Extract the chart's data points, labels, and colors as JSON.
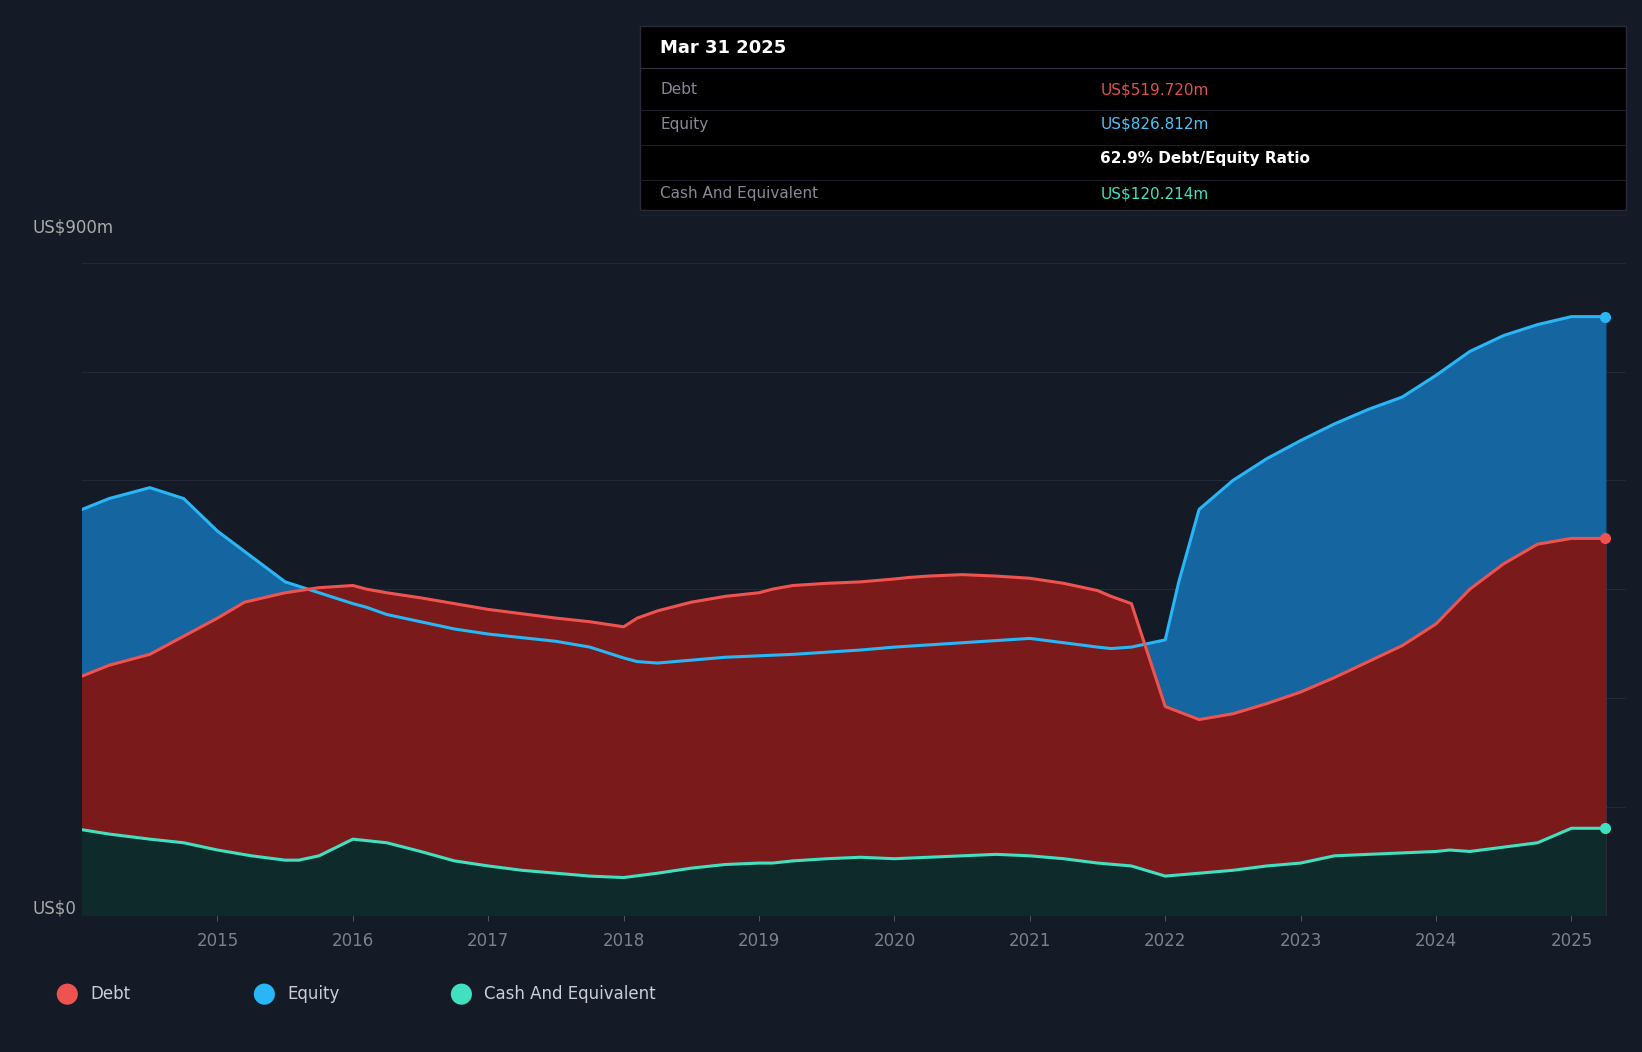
{
  "background_color": "#141b26",
  "plot_bg_color": "#141b26",
  "grid_color": "#2a3040",
  "title_box": {
    "date": "Mar 31 2025",
    "date_color": "#ffffff",
    "rows": [
      {
        "label": "Debt",
        "value": "US$519.720m",
        "value_color": "#e05252"
      },
      {
        "label": "Equity",
        "value": "US$826.812m",
        "value_color": "#4fc3f7"
      },
      {
        "label": "",
        "value": "62.9% Debt/Equity Ratio",
        "value_color": "#ffffff"
      },
      {
        "label": "Cash And Equivalent",
        "value": "US$120.214m",
        "value_color": "#40e0c0"
      }
    ],
    "label_color": "#888899",
    "box_bg": "#000000"
  },
  "ylabel_top": "US$900m",
  "ylabel_bottom": "US$0",
  "x_ticks": [
    2015,
    2016,
    2017,
    2018,
    2019,
    2020,
    2021,
    2022,
    2023,
    2024,
    2025
  ],
  "equity_line_color": "#29b6f6",
  "equity_fill_color": "#1565a0",
  "debt_line_color": "#ef5350",
  "debt_fill_color": "#7b1a1a",
  "cash_line_color": "#40e0c0",
  "cash_fill_color": "#0e2a2a",
  "legend": [
    {
      "label": "Debt",
      "color": "#ef5350"
    },
    {
      "label": "Equity",
      "color": "#29b6f6"
    },
    {
      "label": "Cash And Equivalent",
      "color": "#40e0c0"
    }
  ],
  "equity_data": {
    "x": [
      2014.0,
      2014.2,
      2014.5,
      2014.75,
      2015.0,
      2015.25,
      2015.5,
      2015.75,
      2016.0,
      2016.1,
      2016.25,
      2016.5,
      2016.75,
      2017.0,
      2017.25,
      2017.5,
      2017.75,
      2018.0,
      2018.1,
      2018.25,
      2018.5,
      2018.75,
      2019.0,
      2019.25,
      2019.5,
      2019.75,
      2020.0,
      2020.25,
      2020.5,
      2020.75,
      2021.0,
      2021.25,
      2021.5,
      2021.6,
      2021.75,
      2022.0,
      2022.1,
      2022.25,
      2022.5,
      2022.75,
      2023.0,
      2023.25,
      2023.5,
      2023.75,
      2024.0,
      2024.25,
      2024.5,
      2024.75,
      2025.0,
      2025.25
    ],
    "y": [
      560,
      575,
      590,
      575,
      530,
      495,
      460,
      445,
      430,
      425,
      415,
      405,
      395,
      388,
      383,
      378,
      370,
      355,
      350,
      348,
      352,
      356,
      358,
      360,
      363,
      366,
      370,
      373,
      376,
      379,
      382,
      376,
      370,
      368,
      370,
      380,
      460,
      560,
      600,
      630,
      655,
      678,
      698,
      715,
      745,
      778,
      800,
      815,
      826,
      826
    ]
  },
  "debt_data": {
    "x": [
      2014.0,
      2014.2,
      2014.5,
      2014.75,
      2015.0,
      2015.2,
      2015.5,
      2015.75,
      2016.0,
      2016.1,
      2016.25,
      2016.5,
      2016.75,
      2017.0,
      2017.25,
      2017.5,
      2017.75,
      2018.0,
      2018.1,
      2018.25,
      2018.5,
      2018.75,
      2019.0,
      2019.1,
      2019.25,
      2019.5,
      2019.75,
      2020.0,
      2020.1,
      2020.25,
      2020.5,
      2020.75,
      2021.0,
      2021.25,
      2021.5,
      2021.6,
      2021.75,
      2022.0,
      2022.25,
      2022.5,
      2022.75,
      2023.0,
      2023.25,
      2023.5,
      2023.75,
      2024.0,
      2024.25,
      2024.5,
      2024.75,
      2025.0,
      2025.25
    ],
    "y": [
      330,
      345,
      360,
      385,
      410,
      432,
      445,
      452,
      455,
      450,
      445,
      438,
      430,
      422,
      416,
      410,
      405,
      398,
      410,
      420,
      432,
      440,
      445,
      450,
      455,
      458,
      460,
      464,
      466,
      468,
      470,
      468,
      465,
      458,
      448,
      440,
      430,
      288,
      270,
      278,
      292,
      308,
      328,
      350,
      372,
      402,
      450,
      485,
      512,
      520,
      520
    ]
  },
  "cash_data": {
    "x": [
      2014.0,
      2014.2,
      2014.5,
      2014.75,
      2015.0,
      2015.25,
      2015.5,
      2015.6,
      2015.75,
      2016.0,
      2016.25,
      2016.5,
      2016.75,
      2017.0,
      2017.25,
      2017.5,
      2017.75,
      2018.0,
      2018.25,
      2018.5,
      2018.75,
      2019.0,
      2019.1,
      2019.25,
      2019.5,
      2019.75,
      2020.0,
      2020.25,
      2020.5,
      2020.75,
      2021.0,
      2021.25,
      2021.5,
      2021.75,
      2022.0,
      2022.25,
      2022.5,
      2022.75,
      2023.0,
      2023.1,
      2023.25,
      2023.5,
      2023.75,
      2024.0,
      2024.1,
      2024.25,
      2024.5,
      2024.75,
      2025.0,
      2025.25
    ],
    "y": [
      118,
      112,
      105,
      100,
      90,
      82,
      76,
      76,
      82,
      105,
      100,
      88,
      75,
      68,
      62,
      58,
      54,
      52,
      58,
      65,
      70,
      72,
      72,
      75,
      78,
      80,
      78,
      80,
      82,
      84,
      82,
      78,
      72,
      68,
      54,
      58,
      62,
      68,
      72,
      76,
      82,
      84,
      86,
      88,
      90,
      88,
      94,
      100,
      120,
      120
    ]
  },
  "y_max": 900,
  "x_min": 2014.0,
  "x_max": 2025.4
}
